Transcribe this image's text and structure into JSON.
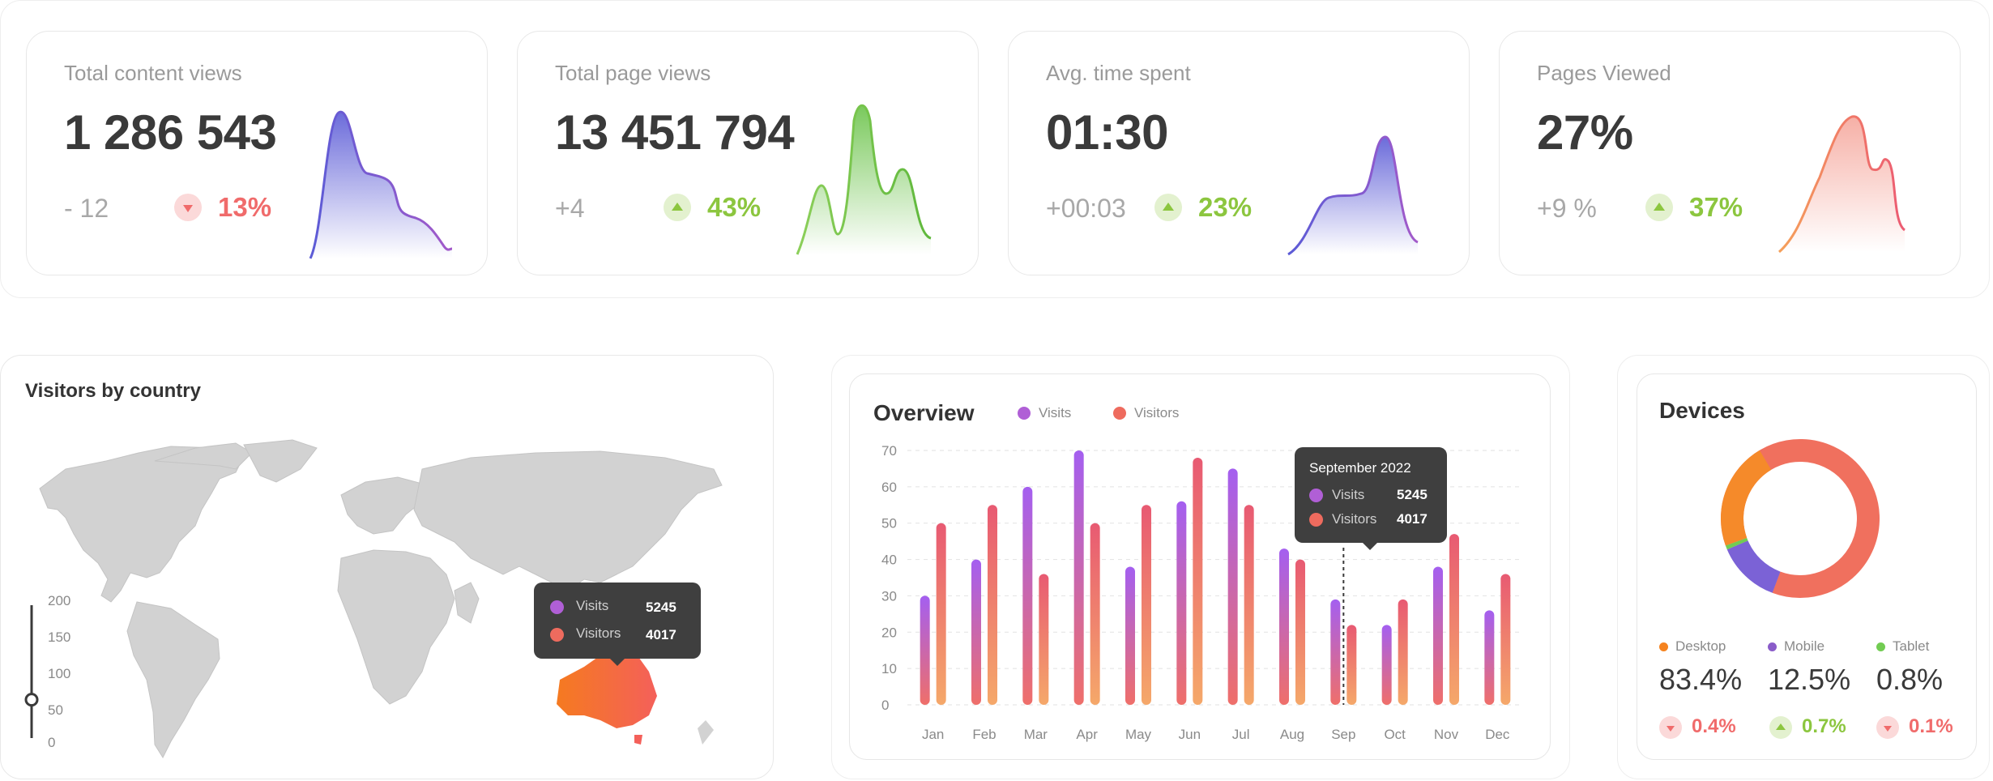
{
  "kpis": [
    {
      "label": "Total content views",
      "value": "1 286 543",
      "delta": "- 12",
      "pct": "13%",
      "trend": "down",
      "color": "#f06b6b",
      "spark_color": "#5b5bd6"
    },
    {
      "label": "Total page views",
      "value": "13 451 794",
      "delta": "+4",
      "pct": "43%",
      "trend": "up",
      "color": "#8cc63f",
      "spark_color": "#6bc34a"
    },
    {
      "label": "Avg. time spent",
      "value": "01:30",
      "delta": "+00:03",
      "pct": "23%",
      "trend": "up",
      "color": "#8cc63f",
      "spark_color": "#5b5bd6"
    },
    {
      "label": "Pages Viewed",
      "value": "27%",
      "delta": "+9 %",
      "pct": "37%",
      "trend": "up",
      "color": "#8cc63f",
      "spark_color": "#f07a6a"
    }
  ],
  "map": {
    "title": "Visitors by country",
    "scale": [
      "200",
      "150",
      "100",
      "50",
      "0"
    ],
    "scale_value": 60,
    "highlight_color": "#f57c3a",
    "land_color": "#d2d2d2",
    "tooltip": {
      "visits_label": "Visits",
      "visits_value": "5245",
      "visitors_label": "Visitors",
      "visitors_value": "4017"
    }
  },
  "overview": {
    "title": "Overview",
    "legend": [
      {
        "name": "Visits",
        "color": "#b05fd6"
      },
      {
        "name": "Visitors",
        "color": "#ee6b5e"
      }
    ],
    "tooltip": {
      "title": "September 2022",
      "visits_label": "Visits",
      "visits_value": "5245",
      "visitors_label": "Visitors",
      "visitors_value": "4017"
    }
  },
  "chart_data": {
    "type": "bar",
    "title": "Overview",
    "categories": [
      "Jan",
      "Feb",
      "Mar",
      "Apr",
      "May",
      "Jun",
      "Jul",
      "Aug",
      "Sep",
      "Oct",
      "Nov",
      "Dec"
    ],
    "series": [
      {
        "name": "Visits",
        "values": [
          30,
          40,
          60,
          70,
          38,
          56,
          65,
          43,
          29,
          22,
          38,
          26
        ]
      },
      {
        "name": "Visitors",
        "values": [
          50,
          55,
          36,
          50,
          55,
          68,
          55,
          40,
          22,
          29,
          47,
          36
        ]
      }
    ],
    "ylim": [
      0,
      70
    ],
    "yticks": [
      0,
      10,
      20,
      30,
      40,
      50,
      60,
      70
    ],
    "grid": true,
    "highlight_category": "Sep"
  },
  "devices": {
    "title": "Devices",
    "items": [
      {
        "name": "Desktop",
        "value": "83.4%",
        "share": 83.4,
        "pct": "0.4%",
        "trend": "down",
        "dot": "#f5831f",
        "pct_color": "#f06b6b"
      },
      {
        "name": "Mobile",
        "value": "12.5%",
        "share": 12.5,
        "pct": "0.7%",
        "trend": "up",
        "dot": "#8a5cc9",
        "pct_color": "#8cc63f"
      },
      {
        "name": "Tablet",
        "value": "0.8%",
        "share": 0.8,
        "pct": "0.1%",
        "trend": "down",
        "dot": "#72cc52",
        "pct_color": "#f06b6b"
      }
    ]
  }
}
